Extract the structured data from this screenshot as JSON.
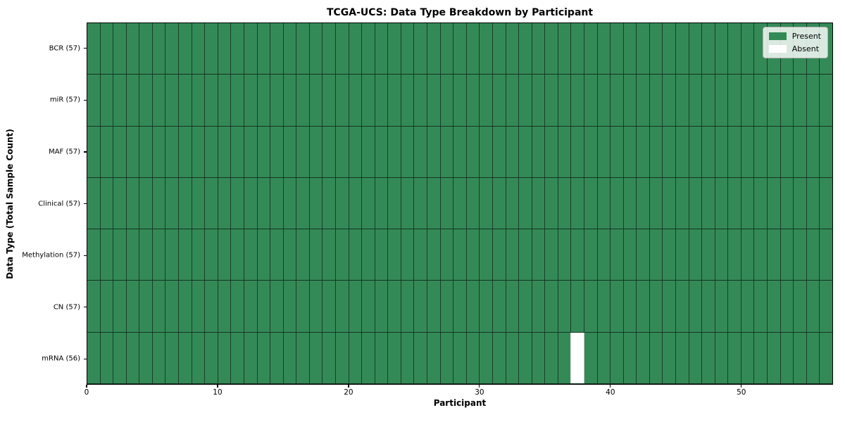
{
  "chart_data": {
    "type": "heatmap",
    "title": "TCGA-UCS: Data Type Breakdown by Participant",
    "xlabel": "Participant",
    "ylabel": "Data Type (Total Sample Count)",
    "n_participants": 57,
    "xlim": [
      0,
      57
    ],
    "x_ticks": [
      0,
      10,
      20,
      30,
      40,
      50
    ],
    "x_tick_labels": [
      "0",
      "10",
      "20",
      "30",
      "40",
      "50"
    ],
    "grid": "cell-borders",
    "rows": [
      {
        "label": "BCR (57)",
        "data_type": "BCR",
        "present_count": 57,
        "absent_participants": []
      },
      {
        "label": "miR (57)",
        "data_type": "miR",
        "present_count": 57,
        "absent_participants": []
      },
      {
        "label": "MAF (57)",
        "data_type": "MAF",
        "present_count": 57,
        "absent_participants": []
      },
      {
        "label": "Clinical (57)",
        "data_type": "Clinical",
        "present_count": 57,
        "absent_participants": []
      },
      {
        "label": "Methylation (57)",
        "data_type": "Methylation",
        "present_count": 57,
        "absent_participants": []
      },
      {
        "label": "CN (57)",
        "data_type": "CN",
        "present_count": 57,
        "absent_participants": []
      },
      {
        "label": "mRNA (56)",
        "data_type": "mRNA",
        "present_count": 56,
        "absent_participants": [
          37
        ]
      }
    ],
    "legend": {
      "position": "upper right",
      "entries": [
        {
          "label": "Present",
          "color": "#348a57"
        },
        {
          "label": "Absent",
          "color": "#ffffff"
        }
      ]
    },
    "colors": {
      "present": "#348a57",
      "absent": "#ffffff",
      "cell_edge": "#1d4f31",
      "spine": "#000000",
      "legend_border": "#b0b0b0"
    }
  }
}
